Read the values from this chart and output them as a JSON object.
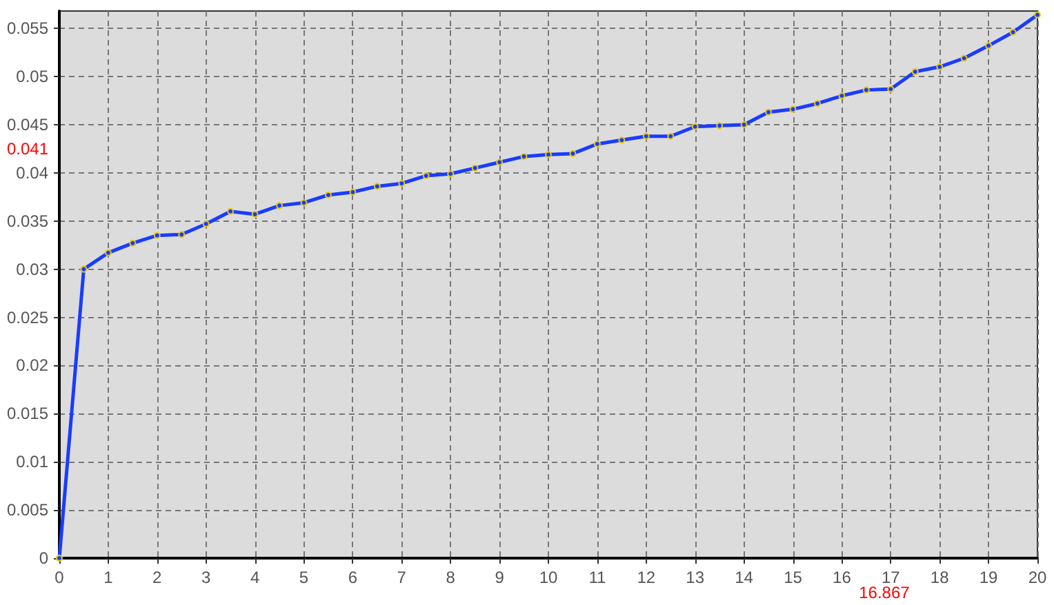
{
  "chart_data": {
    "type": "line",
    "x": [
      0,
      0.5,
      1,
      1.5,
      2,
      2.5,
      3,
      3.5,
      4,
      4.5,
      5,
      5.5,
      6,
      6.5,
      7,
      7.5,
      8,
      8.5,
      9,
      9.5,
      10,
      10.5,
      11,
      11.5,
      12,
      12.5,
      13,
      13.5,
      14,
      14.5,
      15,
      15.5,
      16,
      16.5,
      17,
      17.5,
      18,
      18.5,
      19,
      19.5,
      20
    ],
    "series": [
      {
        "color": "#1a3cff",
        "values": [
          0,
          0.03,
          0.0317,
          0.0327,
          0.0335,
          0.0336,
          0.0347,
          0.036,
          0.0357,
          0.0366,
          0.0369,
          0.0377,
          0.038,
          0.0386,
          0.0389,
          0.0397,
          0.0399,
          0.0405,
          0.0411,
          0.0417,
          0.0419,
          0.042,
          0.043,
          0.0434,
          0.0438,
          0.0438,
          0.0448,
          0.0449,
          0.045,
          0.0463,
          0.0466,
          0.0472,
          0.048,
          0.0486,
          0.0487,
          0.0505,
          0.051,
          0.0519,
          0.0532,
          0.0546,
          0.0564
        ]
      }
    ],
    "xlim": [
      0,
      20
    ],
    "xticks": [
      0,
      1,
      2,
      3,
      4,
      5,
      6,
      7,
      8,
      9,
      10,
      11,
      12,
      13,
      14,
      15,
      16,
      17,
      18,
      19,
      20
    ],
    "ylim": [
      0,
      0.0568
    ],
    "yticks": [
      0,
      0.005,
      0.01,
      0.015,
      0.02,
      0.025,
      0.03,
      0.035,
      0.04,
      0.045,
      0.05,
      0.055
    ],
    "grid": true,
    "marker": "circle",
    "line_style": "solid",
    "annotations": [
      "16.867",
      "0.041"
    ]
  }
}
